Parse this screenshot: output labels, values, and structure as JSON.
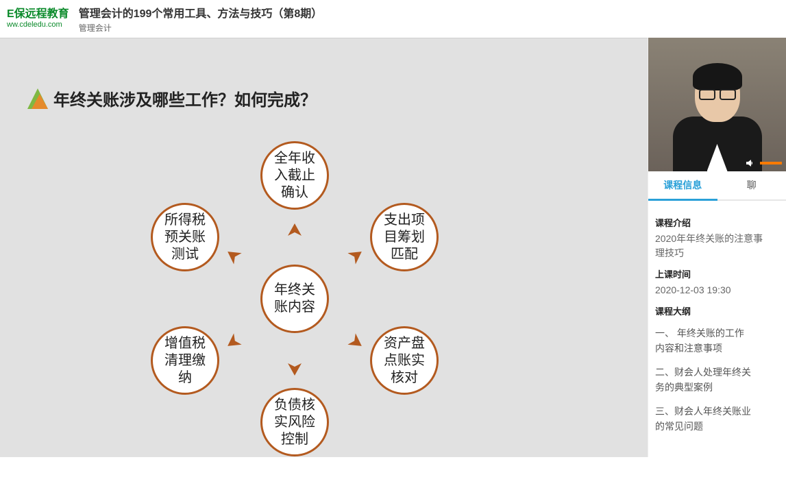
{
  "header": {
    "logo_text": "E保远程教育",
    "logo_url": "ww.cdeledu.com",
    "title": "管理会计的199个常用工具、方法与技巧（第8期）",
    "subtitle": "管理会计"
  },
  "slide": {
    "title": "年终关账涉及哪些工作？如何完成？",
    "center": "年终关\n账内容",
    "nodes": {
      "top": "全年收\n入截止\n确认",
      "ur": "支出项\n目筹划\n匹配",
      "r": "资产盘\n点账实\n核对",
      "bottom": "负债核\n实风险\n控制",
      "l": "增值税\n清理缴\n纳",
      "ul": "所得税\n预关账\n测试"
    },
    "node_border_color": "#b35a1f",
    "arrow_color": "#b35a1f",
    "background": "#e1e1e1"
  },
  "video": {
    "volume_icon": "volume-icon"
  },
  "tabs": {
    "active": "课程信息",
    "other": "聊"
  },
  "panel": {
    "intro_label": "课程介绍",
    "intro_value": "2020年年终关账的注意事\n理技巧",
    "time_label": "上课时间",
    "time_value": "2020-12-03 19:30",
    "outline_label": "课程大纲",
    "outline": [
      "一、  年终关账的工作\n          内容和注意事项",
      "    二、财会人处理年终关\n务的典型案例",
      "    三、财会人年终关账业\n的常见问题"
    ]
  }
}
